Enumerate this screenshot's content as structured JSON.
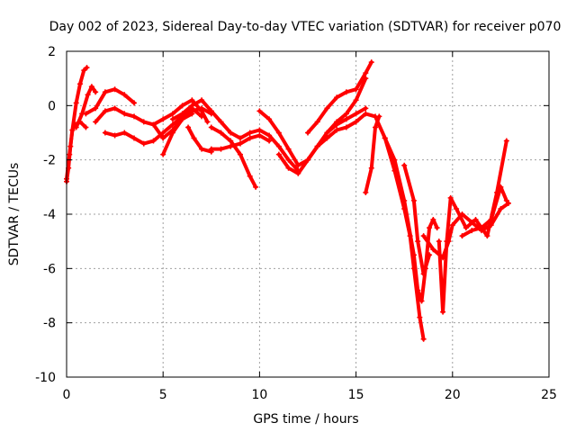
{
  "chart_data": {
    "type": "scatter",
    "title": "Day 002 of 2023, Sidereal Day-to-day VTEC variation (SDTVAR) for receiver p070",
    "xlabel": "GPS time / hours",
    "ylabel": "SDTVAR / TECUs",
    "xlim": [
      0,
      25
    ],
    "ylim": [
      -10,
      2
    ],
    "xticks": [
      0,
      5,
      10,
      15,
      20,
      25
    ],
    "yticks": [
      -10,
      -8,
      -6,
      -4,
      -2,
      0,
      2
    ],
    "grid": true,
    "marker": "+",
    "colors": {
      "series": "#ff0000",
      "grid": "#a0a0a0",
      "axis": "#000000"
    },
    "series": [
      {
        "x": [
          0.0,
          0.15,
          0.3,
          0.5,
          0.7,
          0.9,
          1.05
        ],
        "y": [
          -2.7,
          -1.8,
          -0.9,
          0.1,
          0.8,
          1.3,
          1.4
        ]
      },
      {
        "x": [
          0.0,
          0.1,
          0.2,
          0.3,
          0.45,
          0.7,
          1.0
        ],
        "y": [
          -2.8,
          -2.3,
          -1.5,
          -0.9,
          -0.7,
          -0.6,
          -0.8
        ]
      },
      {
        "x": [
          0.5,
          0.8,
          1.1,
          1.3,
          1.5
        ],
        "y": [
          -0.8,
          -0.3,
          0.4,
          0.7,
          0.5
        ]
      },
      {
        "x": [
          1.0,
          1.5,
          2.0,
          2.5,
          3.0,
          3.5
        ],
        "y": [
          -0.3,
          -0.1,
          0.5,
          0.6,
          0.4,
          0.1
        ]
      },
      {
        "x": [
          1.5,
          2.0,
          2.5,
          3.0,
          3.5,
          4.0,
          4.5,
          5.0,
          5.5,
          6.0,
          6.5,
          7.0,
          7.3
        ],
        "y": [
          -0.6,
          -0.2,
          -0.1,
          -0.3,
          -0.4,
          -0.6,
          -0.7,
          -0.5,
          -0.3,
          0.0,
          0.2,
          -0.2,
          -0.6
        ]
      },
      {
        "x": [
          2.0,
          2.5,
          3.0,
          3.5,
          4.0,
          4.5,
          5.0,
          5.5,
          6.0,
          6.5,
          7.0
        ],
        "y": [
          -1.0,
          -1.1,
          -1.0,
          -1.2,
          -1.4,
          -1.3,
          -1.0,
          -0.7,
          -0.4,
          -0.1,
          -0.4
        ]
      },
      {
        "x": [
          4.5,
          5.0,
          5.5,
          6.0,
          6.5,
          7.0,
          7.5
        ],
        "y": [
          -0.7,
          -1.2,
          -0.9,
          -0.5,
          -0.2,
          -0.1,
          -0.3
        ]
      },
      {
        "x": [
          5.0,
          5.5,
          6.0,
          6.5
        ],
        "y": [
          -1.8,
          -1.0,
          -0.5,
          -0.3
        ]
      },
      {
        "x": [
          5.5,
          6.0,
          6.5,
          7.0,
          7.5,
          8.0,
          8.5,
          9.0,
          9.5,
          10.0,
          10.5,
          11.0,
          11.5,
          12.0
        ],
        "y": [
          -0.5,
          -0.3,
          0.0,
          0.2,
          -0.2,
          -0.6,
          -1.0,
          -1.2,
          -1.0,
          -0.9,
          -1.1,
          -1.5,
          -2.0,
          -2.4
        ]
      },
      {
        "x": [
          6.3,
          6.6,
          7.0,
          7.5
        ],
        "y": [
          -0.8,
          -1.2,
          -1.6,
          -1.7
        ]
      },
      {
        "x": [
          7.5,
          8.0,
          8.5,
          9.0,
          9.5,
          9.8
        ],
        "y": [
          -0.8,
          -1.0,
          -1.3,
          -1.8,
          -2.6,
          -3.0
        ]
      },
      {
        "x": [
          7.5,
          8.0,
          8.5,
          9.0,
          9.5,
          10.0,
          10.5
        ],
        "y": [
          -1.6,
          -1.6,
          -1.5,
          -1.4,
          -1.2,
          -1.1,
          -1.3
        ]
      },
      {
        "x": [
          10.0,
          10.5,
          11.0,
          11.5,
          12.0,
          12.5,
          13.0,
          13.5,
          14.0,
          14.5,
          15.0,
          15.5
        ],
        "y": [
          -0.2,
          -0.5,
          -1.0,
          -1.6,
          -2.2,
          -2.0,
          -1.5,
          -1.0,
          -0.6,
          -0.3,
          0.2,
          1.0
        ]
      },
      {
        "x": [
          11.0,
          11.5,
          12.0,
          12.5,
          13.0,
          13.5,
          14.0,
          14.5,
          15.0,
          15.5
        ],
        "y": [
          -1.8,
          -2.3,
          -2.5,
          -2.0,
          -1.5,
          -1.0,
          -0.7,
          -0.5,
          -0.3,
          -0.1
        ]
      },
      {
        "x": [
          12.5,
          13.0,
          13.5,
          14.0,
          14.5,
          15.0,
          15.5,
          15.8
        ],
        "y": [
          -1.0,
          -0.6,
          -0.1,
          0.3,
          0.5,
          0.6,
          1.2,
          1.6
        ]
      },
      {
        "x": [
          13.0,
          13.5,
          14.0,
          14.5,
          15.0,
          15.5,
          16.0,
          16.5,
          17.0,
          17.5,
          17.8,
          18.0,
          18.3,
          18.5
        ],
        "y": [
          -1.5,
          -1.2,
          -0.9,
          -0.8,
          -0.6,
          -0.3,
          -0.4,
          -1.2,
          -2.4,
          -3.8,
          -4.8,
          -6.0,
          -7.8,
          -8.6
        ]
      },
      {
        "x": [
          15.5,
          15.8,
          16.0,
          16.2
        ],
        "y": [
          -3.2,
          -2.3,
          -0.8,
          -0.4
        ]
      },
      {
        "x": [
          16.5,
          17.0,
          17.5,
          18.0,
          18.2,
          18.4,
          18.6,
          18.8,
          19.0,
          19.2
        ],
        "y": [
          -1.2,
          -2.0,
          -3.5,
          -5.5,
          -6.8,
          -7.2,
          -6.0,
          -4.5,
          -4.2,
          -4.5
        ]
      },
      {
        "x": [
          17.5,
          18.0,
          18.2,
          18.5,
          18.8
        ],
        "y": [
          -2.2,
          -3.5,
          -5.0,
          -6.2,
          -5.5
        ]
      },
      {
        "x": [
          18.5,
          19.0,
          19.5,
          19.8,
          20.0,
          20.5,
          21.0,
          21.5,
          22.0,
          22.5,
          22.9
        ],
        "y": [
          -4.8,
          -5.3,
          -5.6,
          -5.0,
          -4.4,
          -4.0,
          -4.3,
          -4.6,
          -4.4,
          -3.8,
          -3.6
        ]
      },
      {
        "x": [
          19.3,
          19.5,
          19.7,
          19.9,
          20.2,
          20.7,
          21.2,
          21.8,
          22.3,
          22.8
        ],
        "y": [
          -5.0,
          -7.6,
          -5.0,
          -3.4,
          -3.8,
          -4.5,
          -4.2,
          -4.8,
          -3.2,
          -1.3
        ]
      },
      {
        "x": [
          20.5,
          21.0,
          21.5,
          22.0,
          22.5,
          22.8
        ],
        "y": [
          -4.8,
          -4.6,
          -4.5,
          -4.2,
          -3.0,
          -3.5
        ]
      }
    ]
  }
}
